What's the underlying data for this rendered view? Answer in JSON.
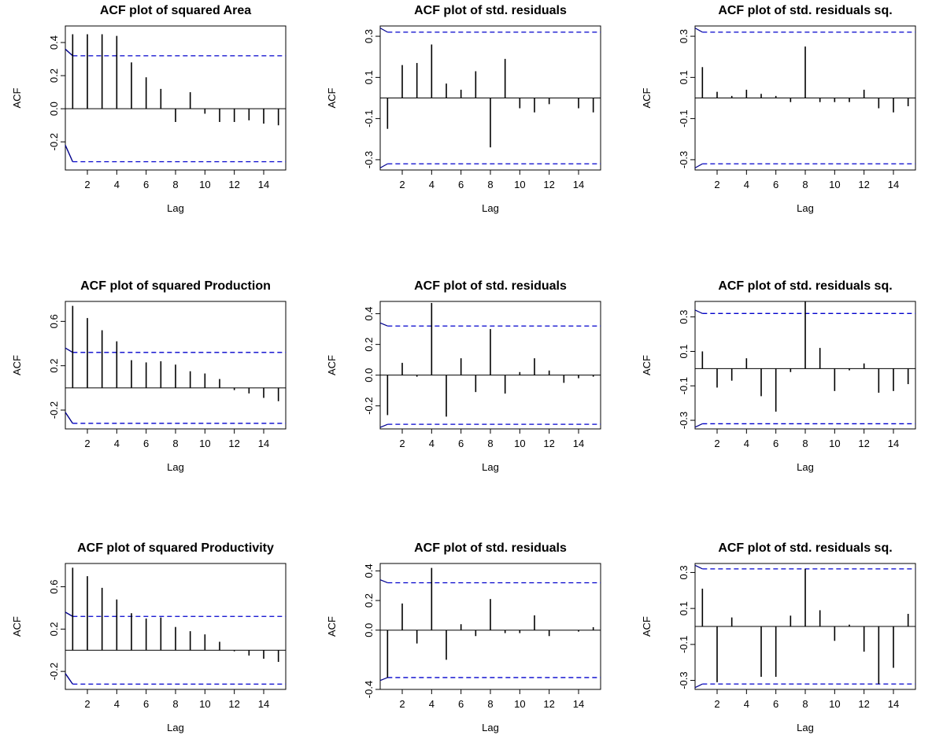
{
  "chart_data": [
    {
      "type": "bar",
      "title": "ACF plot of squared Area",
      "xlabel": "Lag",
      "ylabel": "ACF",
      "xlim": [
        0.5,
        15.5
      ],
      "ylim": [
        -0.37,
        0.5
      ],
      "yticks": [
        -0.2,
        0.0,
        0.2,
        0.4
      ],
      "ytick_labels": [
        "-0.2",
        "0.0",
        "0.2",
        "0.4"
      ],
      "xticks": [
        2,
        4,
        6,
        8,
        10,
        12,
        14
      ],
      "xtick_labels": [
        "2",
        "4",
        "6",
        "8",
        "10",
        "12",
        "14"
      ],
      "ci_bound": 0.32,
      "x": [
        1,
        2,
        3,
        4,
        5,
        6,
        7,
        8,
        9,
        10,
        11,
        12,
        13,
        14,
        15
      ],
      "values": [
        0.45,
        0.45,
        0.45,
        0.44,
        0.28,
        0.19,
        0.12,
        -0.08,
        0.1,
        -0.03,
        -0.08,
        -0.08,
        -0.07,
        -0.09,
        -0.1
      ],
      "lag0_curve": true
    },
    {
      "type": "bar",
      "title": "ACF plot of std. residuals",
      "xlabel": "Lag",
      "ylabel": "ACF",
      "xlim": [
        0.5,
        15.5
      ],
      "ylim": [
        -0.35,
        0.35
      ],
      "yticks": [
        -0.3,
        -0.1,
        0.1,
        0.3
      ],
      "ytick_labels": [
        "-0.3",
        "-0.1",
        "0.1",
        "0.3"
      ],
      "xticks": [
        2,
        4,
        6,
        8,
        10,
        12,
        14
      ],
      "xtick_labels": [
        "2",
        "4",
        "6",
        "8",
        "10",
        "12",
        "14"
      ],
      "ci_bound": 0.32,
      "x": [
        1,
        2,
        3,
        4,
        5,
        6,
        7,
        8,
        9,
        10,
        11,
        12,
        13,
        14,
        15
      ],
      "values": [
        -0.15,
        0.16,
        0.17,
        0.26,
        0.07,
        0.04,
        0.13,
        -0.24,
        0.19,
        -0.05,
        -0.07,
        -0.03,
        0.0,
        -0.05,
        -0.07
      ],
      "lag0_curve": false
    },
    {
      "type": "bar",
      "title": "ACF plot of std. residuals sq.",
      "xlabel": "Lag",
      "ylabel": "ACF",
      "xlim": [
        0.5,
        15.5
      ],
      "ylim": [
        -0.35,
        0.35
      ],
      "yticks": [
        -0.3,
        -0.1,
        0.1,
        0.3
      ],
      "ytick_labels": [
        "-0.3",
        "-0.1",
        "0.1",
        "0.3"
      ],
      "xticks": [
        2,
        4,
        6,
        8,
        10,
        12,
        14
      ],
      "xtick_labels": [
        "2",
        "4",
        "6",
        "8",
        "10",
        "12",
        "14"
      ],
      "ci_bound": 0.32,
      "x": [
        1,
        2,
        3,
        4,
        5,
        6,
        7,
        8,
        9,
        10,
        11,
        12,
        13,
        14,
        15
      ],
      "values": [
        0.15,
        0.03,
        0.01,
        0.04,
        0.02,
        0.01,
        -0.02,
        0.25,
        -0.02,
        -0.02,
        -0.02,
        0.04,
        -0.05,
        -0.07,
        -0.04
      ],
      "lag0_curve": false
    },
    {
      "type": "bar",
      "title": "ACF plot of squared Production",
      "xlabel": "Lag",
      "ylabel": "ACF",
      "xlim": [
        0.5,
        15.5
      ],
      "ylim": [
        -0.37,
        0.78
      ],
      "yticks": [
        -0.2,
        0.2,
        0.6
      ],
      "ytick_labels": [
        "-0.2",
        "0.2",
        "0.6"
      ],
      "xticks": [
        2,
        4,
        6,
        8,
        10,
        12,
        14
      ],
      "xtick_labels": [
        "2",
        "4",
        "6",
        "8",
        "10",
        "12",
        "14"
      ],
      "ci_bound": 0.32,
      "x": [
        1,
        2,
        3,
        4,
        5,
        6,
        7,
        8,
        9,
        10,
        11,
        12,
        13,
        14,
        15
      ],
      "values": [
        0.74,
        0.63,
        0.52,
        0.42,
        0.25,
        0.23,
        0.24,
        0.21,
        0.15,
        0.13,
        0.08,
        -0.02,
        -0.05,
        -0.09,
        -0.12
      ],
      "lag0_curve": true
    },
    {
      "type": "bar",
      "title": "ACF plot of std. residuals",
      "xlabel": "Lag",
      "ylabel": "ACF",
      "xlim": [
        0.5,
        15.5
      ],
      "ylim": [
        -0.35,
        0.48
      ],
      "yticks": [
        -0.2,
        0.0,
        0.2,
        0.4
      ],
      "ytick_labels": [
        "-0.2",
        "0.0",
        "0.2",
        "0.4"
      ],
      "xticks": [
        2,
        4,
        6,
        8,
        10,
        12,
        14
      ],
      "xtick_labels": [
        "2",
        "4",
        "6",
        "8",
        "10",
        "12",
        "14"
      ],
      "ci_bound": 0.32,
      "x": [
        1,
        2,
        3,
        4,
        5,
        6,
        7,
        8,
        9,
        10,
        11,
        12,
        13,
        14,
        15
      ],
      "values": [
        -0.26,
        0.08,
        -0.01,
        0.47,
        -0.27,
        0.11,
        -0.11,
        0.3,
        -0.12,
        0.02,
        0.11,
        0.03,
        -0.05,
        -0.02,
        -0.01
      ],
      "lag0_curve": false
    },
    {
      "type": "bar",
      "title": "ACF plot of std. residuals sq.",
      "xlabel": "Lag",
      "ylabel": "ACF",
      "xlim": [
        0.5,
        15.5
      ],
      "ylim": [
        -0.35,
        0.39
      ],
      "yticks": [
        -0.3,
        -0.1,
        0.1,
        0.3
      ],
      "ytick_labels": [
        "-0.3",
        "-0.1",
        "0.1",
        "0.3"
      ],
      "xticks": [
        2,
        4,
        6,
        8,
        10,
        12,
        14
      ],
      "xtick_labels": [
        "2",
        "4",
        "6",
        "8",
        "10",
        "12",
        "14"
      ],
      "ci_bound": 0.32,
      "x": [
        1,
        2,
        3,
        4,
        5,
        6,
        7,
        8,
        9,
        10,
        11,
        12,
        13,
        14,
        15
      ],
      "values": [
        0.1,
        -0.11,
        -0.07,
        0.06,
        -0.16,
        -0.25,
        -0.02,
        0.39,
        0.12,
        -0.13,
        -0.01,
        0.03,
        -0.14,
        -0.13,
        -0.09
      ],
      "lag0_curve": false
    },
    {
      "type": "bar",
      "title": "ACF plot of squared Productivity",
      "xlabel": "Lag",
      "ylabel": "ACF",
      "xlim": [
        0.5,
        15.5
      ],
      "ylim": [
        -0.37,
        0.82
      ],
      "yticks": [
        -0.2,
        0.2,
        0.6
      ],
      "ytick_labels": [
        "-0.2",
        "0.2",
        "0.6"
      ],
      "xticks": [
        2,
        4,
        6,
        8,
        10,
        12,
        14
      ],
      "xtick_labels": [
        "2",
        "4",
        "6",
        "8",
        "10",
        "12",
        "14"
      ],
      "ci_bound": 0.32,
      "x": [
        1,
        2,
        3,
        4,
        5,
        6,
        7,
        8,
        9,
        10,
        11,
        12,
        13,
        14,
        15
      ],
      "values": [
        0.78,
        0.7,
        0.59,
        0.48,
        0.35,
        0.3,
        0.31,
        0.22,
        0.18,
        0.15,
        0.08,
        -0.01,
        -0.05,
        -0.08,
        -0.11
      ],
      "lag0_curve": true
    },
    {
      "type": "bar",
      "title": "ACF plot of std. residuals",
      "xlabel": "Lag",
      "ylabel": "ACF",
      "xlim": [
        0.5,
        15.5
      ],
      "ylim": [
        -0.4,
        0.45
      ],
      "yticks": [
        -0.4,
        0.0,
        0.2,
        0.4
      ],
      "ytick_labels": [
        "-0.4",
        "0.0",
        "0.2",
        "0.4"
      ],
      "xticks": [
        2,
        4,
        6,
        8,
        10,
        12,
        14
      ],
      "xtick_labels": [
        "2",
        "4",
        "6",
        "8",
        "10",
        "12",
        "14"
      ],
      "ci_bound": 0.32,
      "x": [
        1,
        2,
        3,
        4,
        5,
        6,
        7,
        8,
        9,
        10,
        11,
        12,
        13,
        14,
        15
      ],
      "values": [
        -0.32,
        0.18,
        -0.09,
        0.42,
        -0.2,
        0.04,
        -0.04,
        0.21,
        -0.02,
        -0.02,
        0.1,
        -0.04,
        0.0,
        -0.01,
        0.02
      ],
      "lag0_curve": false
    },
    {
      "type": "bar",
      "title": "ACF plot of std. residuals sq.",
      "xlabel": "Lag",
      "ylabel": "ACF",
      "xlim": [
        0.5,
        15.5
      ],
      "ylim": [
        -0.35,
        0.35
      ],
      "yticks": [
        -0.3,
        -0.1,
        0.1,
        0.3
      ],
      "ytick_labels": [
        "-0.3",
        "-0.1",
        "0.1",
        "0.3"
      ],
      "xticks": [
        2,
        4,
        6,
        8,
        10,
        12,
        14
      ],
      "xtick_labels": [
        "2",
        "4",
        "6",
        "8",
        "10",
        "12",
        "14"
      ],
      "ci_bound": 0.32,
      "x": [
        1,
        2,
        3,
        4,
        5,
        6,
        7,
        8,
        9,
        10,
        11,
        12,
        13,
        14,
        15
      ],
      "values": [
        0.21,
        -0.31,
        0.05,
        0.0,
        -0.28,
        -0.28,
        0.06,
        0.32,
        0.09,
        -0.08,
        0.01,
        -0.14,
        -0.32,
        -0.23,
        0.07
      ],
      "lag0_curve": false
    }
  ],
  "colors": {
    "bars": "#000000",
    "ci_lines": "#0000cc",
    "lag0_curve": "#00008b",
    "axes": "#000000"
  }
}
